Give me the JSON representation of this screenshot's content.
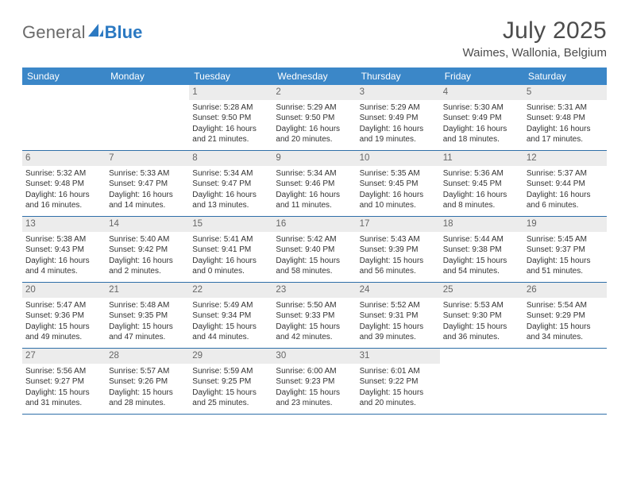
{
  "brand": {
    "word1": "General",
    "word2": "Blue"
  },
  "title": "July 2025",
  "location": "Waimes, Wallonia, Belgium",
  "colors": {
    "headerBar": "#3b87c8",
    "weekBorder": "#2f6fa8",
    "dayNumBg": "#ececec",
    "brandBlue": "#2b79c2",
    "brandGrey": "#6a6a6a",
    "text": "#333333"
  },
  "daysOfWeek": [
    "Sunday",
    "Monday",
    "Tuesday",
    "Wednesday",
    "Thursday",
    "Friday",
    "Saturday"
  ],
  "weeks": [
    [
      null,
      null,
      {
        "n": "1",
        "sr": "5:28 AM",
        "ss": "9:50 PM",
        "dl": "16 hours and 21 minutes."
      },
      {
        "n": "2",
        "sr": "5:29 AM",
        "ss": "9:50 PM",
        "dl": "16 hours and 20 minutes."
      },
      {
        "n": "3",
        "sr": "5:29 AM",
        "ss": "9:49 PM",
        "dl": "16 hours and 19 minutes."
      },
      {
        "n": "4",
        "sr": "5:30 AM",
        "ss": "9:49 PM",
        "dl": "16 hours and 18 minutes."
      },
      {
        "n": "5",
        "sr": "5:31 AM",
        "ss": "9:48 PM",
        "dl": "16 hours and 17 minutes."
      }
    ],
    [
      {
        "n": "6",
        "sr": "5:32 AM",
        "ss": "9:48 PM",
        "dl": "16 hours and 16 minutes."
      },
      {
        "n": "7",
        "sr": "5:33 AM",
        "ss": "9:47 PM",
        "dl": "16 hours and 14 minutes."
      },
      {
        "n": "8",
        "sr": "5:34 AM",
        "ss": "9:47 PM",
        "dl": "16 hours and 13 minutes."
      },
      {
        "n": "9",
        "sr": "5:34 AM",
        "ss": "9:46 PM",
        "dl": "16 hours and 11 minutes."
      },
      {
        "n": "10",
        "sr": "5:35 AM",
        "ss": "9:45 PM",
        "dl": "16 hours and 10 minutes."
      },
      {
        "n": "11",
        "sr": "5:36 AM",
        "ss": "9:45 PM",
        "dl": "16 hours and 8 minutes."
      },
      {
        "n": "12",
        "sr": "5:37 AM",
        "ss": "9:44 PM",
        "dl": "16 hours and 6 minutes."
      }
    ],
    [
      {
        "n": "13",
        "sr": "5:38 AM",
        "ss": "9:43 PM",
        "dl": "16 hours and 4 minutes."
      },
      {
        "n": "14",
        "sr": "5:40 AM",
        "ss": "9:42 PM",
        "dl": "16 hours and 2 minutes."
      },
      {
        "n": "15",
        "sr": "5:41 AM",
        "ss": "9:41 PM",
        "dl": "16 hours and 0 minutes."
      },
      {
        "n": "16",
        "sr": "5:42 AM",
        "ss": "9:40 PM",
        "dl": "15 hours and 58 minutes."
      },
      {
        "n": "17",
        "sr": "5:43 AM",
        "ss": "9:39 PM",
        "dl": "15 hours and 56 minutes."
      },
      {
        "n": "18",
        "sr": "5:44 AM",
        "ss": "9:38 PM",
        "dl": "15 hours and 54 minutes."
      },
      {
        "n": "19",
        "sr": "5:45 AM",
        "ss": "9:37 PM",
        "dl": "15 hours and 51 minutes."
      }
    ],
    [
      {
        "n": "20",
        "sr": "5:47 AM",
        "ss": "9:36 PM",
        "dl": "15 hours and 49 minutes."
      },
      {
        "n": "21",
        "sr": "5:48 AM",
        "ss": "9:35 PM",
        "dl": "15 hours and 47 minutes."
      },
      {
        "n": "22",
        "sr": "5:49 AM",
        "ss": "9:34 PM",
        "dl": "15 hours and 44 minutes."
      },
      {
        "n": "23",
        "sr": "5:50 AM",
        "ss": "9:33 PM",
        "dl": "15 hours and 42 minutes."
      },
      {
        "n": "24",
        "sr": "5:52 AM",
        "ss": "9:31 PM",
        "dl": "15 hours and 39 minutes."
      },
      {
        "n": "25",
        "sr": "5:53 AM",
        "ss": "9:30 PM",
        "dl": "15 hours and 36 minutes."
      },
      {
        "n": "26",
        "sr": "5:54 AM",
        "ss": "9:29 PM",
        "dl": "15 hours and 34 minutes."
      }
    ],
    [
      {
        "n": "27",
        "sr": "5:56 AM",
        "ss": "9:27 PM",
        "dl": "15 hours and 31 minutes."
      },
      {
        "n": "28",
        "sr": "5:57 AM",
        "ss": "9:26 PM",
        "dl": "15 hours and 28 minutes."
      },
      {
        "n": "29",
        "sr": "5:59 AM",
        "ss": "9:25 PM",
        "dl": "15 hours and 25 minutes."
      },
      {
        "n": "30",
        "sr": "6:00 AM",
        "ss": "9:23 PM",
        "dl": "15 hours and 23 minutes."
      },
      {
        "n": "31",
        "sr": "6:01 AM",
        "ss": "9:22 PM",
        "dl": "15 hours and 20 minutes."
      },
      null,
      null
    ]
  ],
  "labels": {
    "sunrise": "Sunrise: ",
    "sunset": "Sunset: ",
    "daylight": "Daylight: "
  }
}
